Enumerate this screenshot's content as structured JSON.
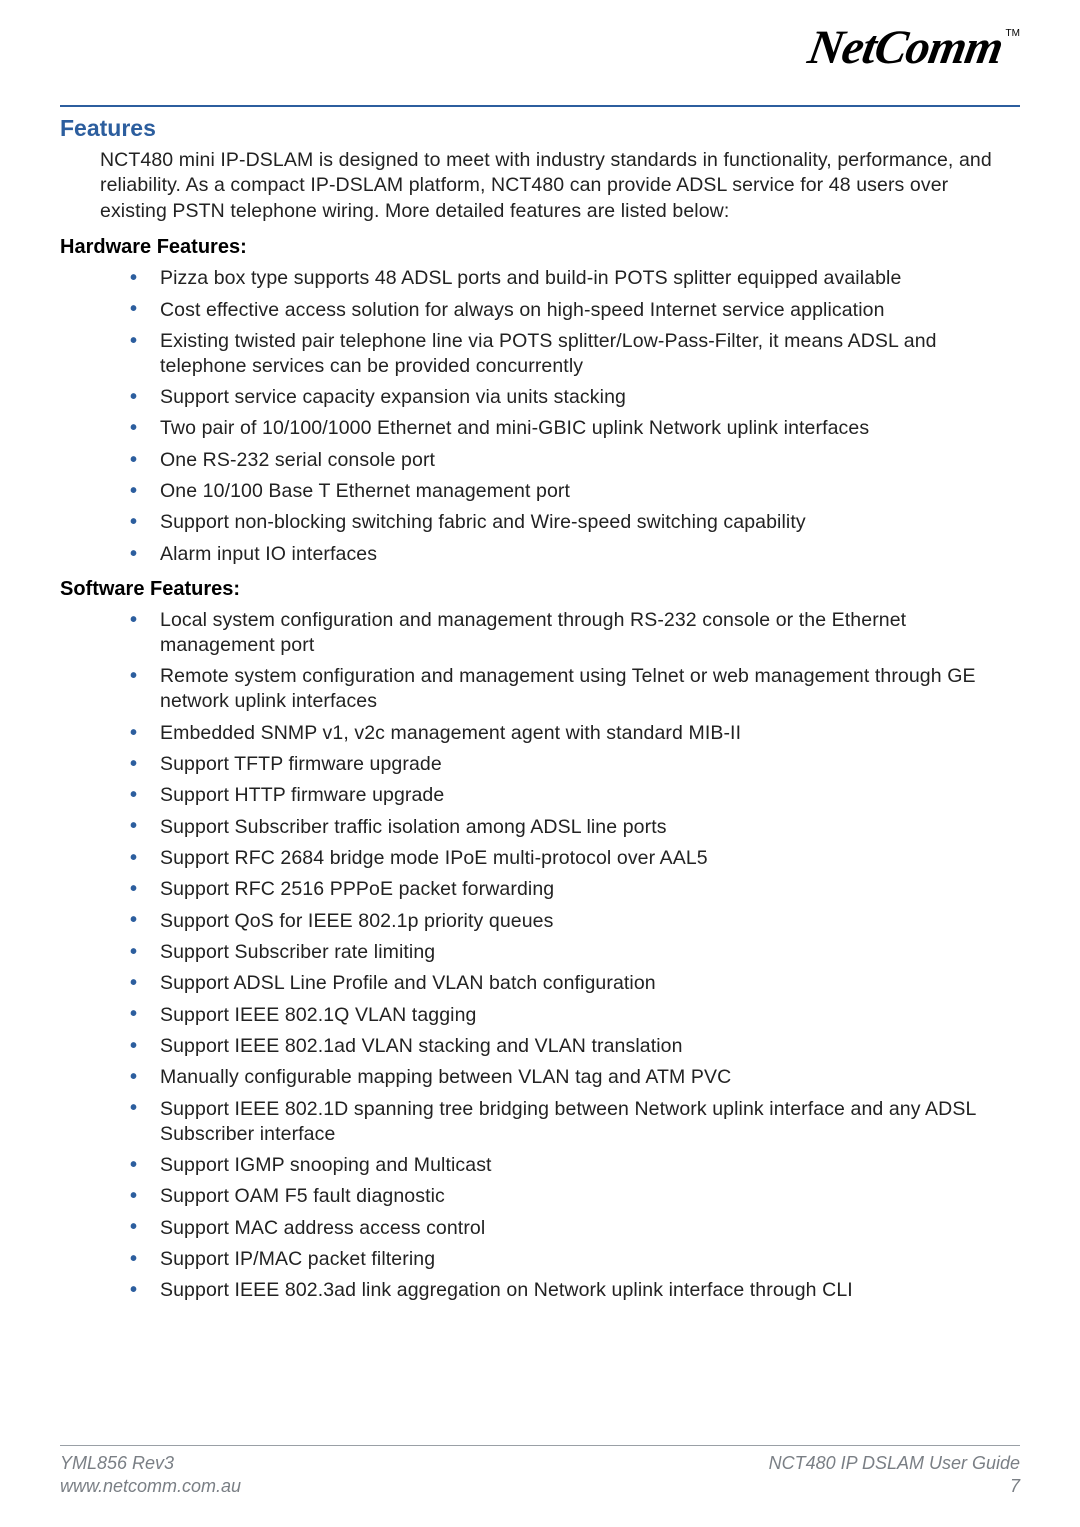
{
  "brand": {
    "logo_text": "NetComm",
    "tm": "TM"
  },
  "colors": {
    "accent": "#2c5e9e",
    "body_text": "#222222",
    "footer_text": "#7a7f85",
    "divider": "#9aa0a6",
    "background": "#ffffff"
  },
  "section_title": "Features",
  "intro": "NCT480 mini IP-DSLAM is designed to meet with industry standards in functionality, performance, and reliability. As a compact IP-DSLAM platform, NCT480 can provide ADSL service for 48 users over existing PSTN telephone wiring. More detailed features are listed below:",
  "hardware": {
    "heading": "Hardware Features:",
    "items": [
      "Pizza box type supports 48 ADSL ports and build-in POTS splitter equipped available",
      "Cost effective access solution for always on high-speed Internet service application",
      "Existing twisted pair telephone line via POTS splitter/Low-Pass-Filter, it means ADSL and telephone services can be provided concurrently",
      "Support service capacity expansion via units stacking",
      "Two pair of 10/100/1000 Ethernet and mini-GBIC uplink Network uplink interfaces",
      "One RS-232 serial console port",
      "One 10/100 Base T Ethernet management port",
      "Support non-blocking switching fabric and Wire-speed switching capability",
      "Alarm input IO interfaces"
    ]
  },
  "software": {
    "heading": "Software Features:",
    "items": [
      "Local system configuration and management through RS-232 console or the Ethernet management port",
      "Remote system configuration and management using Telnet or web management through GE network uplink interfaces",
      "Embedded SNMP v1, v2c management agent with standard MIB-II",
      "Support TFTP firmware upgrade",
      "Support HTTP firmware upgrade",
      "Support Subscriber traffic isolation among ADSL line ports",
      "Support RFC 2684 bridge mode IPoE multi-protocol over AAL5",
      "Support RFC 2516 PPPoE packet forwarding",
      "Support QoS for IEEE 802.1p priority queues",
      "Support Subscriber rate limiting",
      "Support ADSL Line Profile and VLAN batch configuration",
      "Support IEEE 802.1Q VLAN tagging",
      "Support IEEE 802.1ad VLAN stacking and VLAN translation",
      "Manually configurable mapping between VLAN tag and ATM PVC",
      "Support IEEE 802.1D spanning tree bridging between Network uplink interface and any ADSL Subscriber interface",
      "Support IGMP snooping and Multicast",
      "Support OAM F5 fault diagnostic",
      "Support MAC address access control",
      "Support IP/MAC packet filtering",
      "Support IEEE 802.3ad link aggregation on Network uplink interface through CLI"
    ]
  },
  "footer": {
    "left_line1": "YML856 Rev3",
    "left_line2": "www.netcomm.com.au",
    "right_line1": "NCT480 IP DSLAM User Guide",
    "right_line2": "7"
  }
}
